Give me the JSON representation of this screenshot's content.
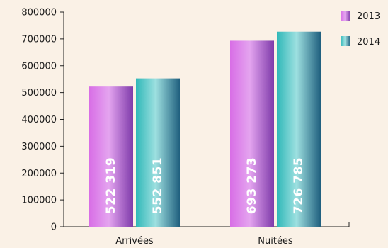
{
  "chart_data": {
    "type": "bar",
    "categories": [
      "Arrivées",
      "Nuitées"
    ],
    "series": [
      {
        "name": "2013",
        "values": [
          522319,
          693273
        ],
        "labels": [
          "522 319",
          "693 273"
        ],
        "color": "#b05ad8"
      },
      {
        "name": "2014",
        "values": [
          552851,
          726785
        ],
        "labels": [
          "552 851",
          "726 785"
        ],
        "color": "#2a9aa6"
      }
    ],
    "yticks": [
      "0",
      "100000",
      "200000",
      "300000",
      "400000",
      "500000",
      "600000",
      "700000",
      "800000"
    ],
    "ylim": [
      0,
      800000
    ],
    "grid": false,
    "legend_position": "top-right",
    "title": "",
    "xlabel": "",
    "ylabel": ""
  }
}
